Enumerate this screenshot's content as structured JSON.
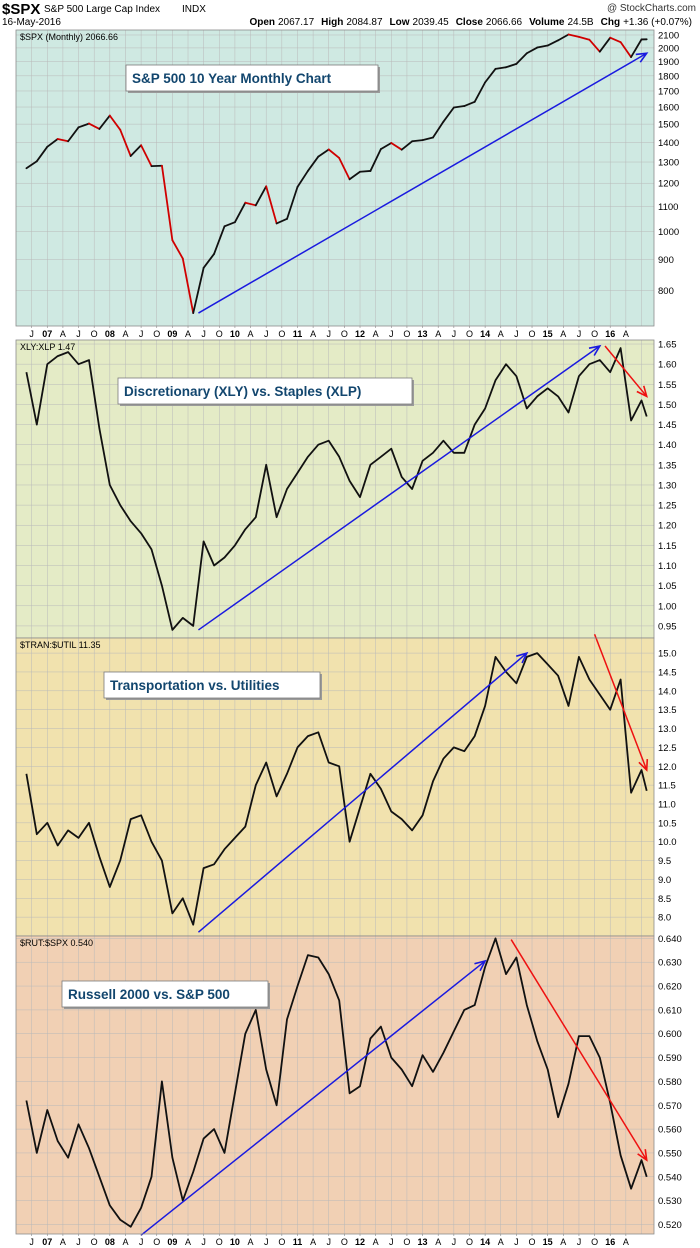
{
  "header": {
    "symbol": "$SPX",
    "name": "S&P 500 Large Cap Index",
    "exchange": "INDX",
    "watermark": "@ StockCharts.com",
    "date": "16-May-2016",
    "open_label": "Open",
    "open": "2067.17",
    "high_label": "High",
    "high": "2084.87",
    "low_label": "Low",
    "low": "2039.45",
    "close_label": "Close",
    "close": "2066.66",
    "volume_label": "Volume",
    "volume": "24.5B",
    "chg_label": "Chg",
    "chg": "+1.36 (+0.07%)"
  },
  "colors": {
    "up_line": "#111111",
    "down_line": "#d00000",
    "trend_up": "#1a1adf",
    "trend_down": "#ee1111",
    "panel_bg": [
      "#cfe9e2",
      "#e4ebc6",
      "#f1e2ae",
      "#f1d0b4"
    ]
  },
  "x_axis": {
    "tick_labels": [
      "J",
      "07",
      "A",
      "J",
      "O",
      "08",
      "A",
      "J",
      "O",
      "09",
      "A",
      "J",
      "O",
      "10",
      "A",
      "J",
      "O",
      "11",
      "A",
      "J",
      "O",
      "12",
      "A",
      "J",
      "O",
      "13",
      "A",
      "J",
      "O",
      "14",
      "A",
      "J",
      "O",
      "15",
      "A",
      "J",
      "O",
      "16",
      "A"
    ],
    "bold_labels": [
      "07",
      "08",
      "09",
      "10",
      "11",
      "12",
      "13",
      "14",
      "15",
      "16"
    ]
  },
  "chart_data": [
    {
      "type": "line",
      "legend": "$SPX (Monthly) 2066.66",
      "annotation": "S&P 500 10 Year Monthly Chart",
      "y_scale": "log",
      "ylim": [
        700,
        2140
      ],
      "yticks": [
        800,
        900,
        1000,
        1100,
        1200,
        1300,
        1400,
        1500,
        1600,
        1700,
        1800,
        1900,
        2000,
        2100
      ],
      "x": [
        "2006-06",
        "2006-08",
        "2006-10",
        "2006-12",
        "2007-02",
        "2007-04",
        "2007-06",
        "2007-08",
        "2007-10",
        "2007-12",
        "2008-02",
        "2008-04",
        "2008-06",
        "2008-08",
        "2008-10",
        "2008-12",
        "2009-02",
        "2009-04",
        "2009-06",
        "2009-08",
        "2009-10",
        "2009-12",
        "2010-02",
        "2010-04",
        "2010-06",
        "2010-08",
        "2010-10",
        "2010-12",
        "2011-02",
        "2011-04",
        "2011-06",
        "2011-08",
        "2011-10",
        "2011-12",
        "2012-02",
        "2012-04",
        "2012-06",
        "2012-08",
        "2012-10",
        "2012-12",
        "2013-02",
        "2013-04",
        "2013-06",
        "2013-08",
        "2013-10",
        "2013-12",
        "2014-02",
        "2014-04",
        "2014-06",
        "2014-08",
        "2014-10",
        "2014-12",
        "2015-02",
        "2015-04",
        "2015-06",
        "2015-08",
        "2015-10",
        "2015-12",
        "2016-02",
        "2016-04",
        "2016-05"
      ],
      "values": [
        1270,
        1304,
        1377,
        1418,
        1406,
        1482,
        1503,
        1473,
        1549,
        1468,
        1330,
        1385,
        1280,
        1282,
        968,
        903,
        735,
        872,
        919,
        1020,
        1036,
        1115,
        1104,
        1186,
        1031,
        1049,
        1183,
        1257,
        1327,
        1363,
        1320,
        1218,
        1253,
        1257,
        1365,
        1397,
        1362,
        1406,
        1412,
        1426,
        1514,
        1597,
        1606,
        1632,
        1756,
        1848,
        1859,
        1883,
        1960,
        2003,
        2018,
        2058,
        2104,
        2085,
        2063,
        1972,
        2079,
        2044,
        1932,
        2065,
        2066
      ],
      "trendlines": [
        {
          "from": [
            "2009-03",
            735
          ],
          "to": [
            "2016-05",
            1960
          ],
          "color": "blue"
        }
      ]
    },
    {
      "type": "line",
      "legend": "XLY:XLP 1.47",
      "annotation": "Discretionary (XLY) vs. Staples (XLP)",
      "ylim": [
        0.92,
        1.66
      ],
      "yticks": [
        0.95,
        1.0,
        1.05,
        1.1,
        1.15,
        1.2,
        1.25,
        1.3,
        1.35,
        1.4,
        1.45,
        1.5,
        1.55,
        1.6,
        1.65
      ],
      "x": [
        "2006-06",
        "2006-08",
        "2006-10",
        "2006-12",
        "2007-02",
        "2007-04",
        "2007-06",
        "2007-08",
        "2007-10",
        "2007-12",
        "2008-02",
        "2008-04",
        "2008-06",
        "2008-08",
        "2008-10",
        "2008-12",
        "2009-02",
        "2009-04",
        "2009-06",
        "2009-08",
        "2009-10",
        "2009-12",
        "2010-02",
        "2010-04",
        "2010-06",
        "2010-08",
        "2010-10",
        "2010-12",
        "2011-02",
        "2011-04",
        "2011-06",
        "2011-08",
        "2011-10",
        "2011-12",
        "2012-02",
        "2012-04",
        "2012-06",
        "2012-08",
        "2012-10",
        "2012-12",
        "2013-02",
        "2013-04",
        "2013-06",
        "2013-08",
        "2013-10",
        "2013-12",
        "2014-02",
        "2014-04",
        "2014-06",
        "2014-08",
        "2014-10",
        "2014-12",
        "2015-02",
        "2015-04",
        "2015-06",
        "2015-08",
        "2015-10",
        "2015-12",
        "2016-02",
        "2016-04",
        "2016-05"
      ],
      "values": [
        1.58,
        1.45,
        1.6,
        1.62,
        1.63,
        1.6,
        1.61,
        1.44,
        1.3,
        1.25,
        1.21,
        1.18,
        1.14,
        1.05,
        0.94,
        0.97,
        0.95,
        1.16,
        1.1,
        1.12,
        1.15,
        1.19,
        1.22,
        1.35,
        1.22,
        1.29,
        1.33,
        1.37,
        1.4,
        1.41,
        1.37,
        1.31,
        1.27,
        1.35,
        1.37,
        1.39,
        1.32,
        1.29,
        1.36,
        1.38,
        1.41,
        1.38,
        1.38,
        1.45,
        1.49,
        1.56,
        1.6,
        1.57,
        1.49,
        1.52,
        1.54,
        1.52,
        1.48,
        1.57,
        1.6,
        1.61,
        1.58,
        1.64,
        1.46,
        1.51,
        1.47
      ],
      "trendlines": [
        {
          "from": [
            "2009-03",
            0.94
          ],
          "to": [
            "2015-08",
            1.645
          ],
          "color": "blue"
        },
        {
          "from": [
            "2015-09",
            1.645
          ],
          "to": [
            "2016-05",
            1.52
          ],
          "color": "red"
        }
      ]
    },
    {
      "type": "line",
      "legend": "$TRAN:$UTIL 11.35",
      "annotation": "Transportation vs. Utilities",
      "ylim": [
        7.5,
        15.4
      ],
      "yticks": [
        8.0,
        8.5,
        9.0,
        9.5,
        10.0,
        10.5,
        11.0,
        11.5,
        12.0,
        12.5,
        13.0,
        13.5,
        14.0,
        14.5,
        15.0
      ],
      "x": [
        "2006-06",
        "2006-08",
        "2006-10",
        "2006-12",
        "2007-02",
        "2007-04",
        "2007-06",
        "2007-08",
        "2007-10",
        "2007-12",
        "2008-02",
        "2008-04",
        "2008-06",
        "2008-08",
        "2008-10",
        "2008-12",
        "2009-02",
        "2009-04",
        "2009-06",
        "2009-08",
        "2009-10",
        "2009-12",
        "2010-02",
        "2010-04",
        "2010-06",
        "2010-08",
        "2010-10",
        "2010-12",
        "2011-02",
        "2011-04",
        "2011-06",
        "2011-08",
        "2011-10",
        "2011-12",
        "2012-02",
        "2012-04",
        "2012-06",
        "2012-08",
        "2012-10",
        "2012-12",
        "2013-02",
        "2013-04",
        "2013-06",
        "2013-08",
        "2013-10",
        "2013-12",
        "2014-02",
        "2014-04",
        "2014-06",
        "2014-08",
        "2014-10",
        "2014-12",
        "2015-02",
        "2015-04",
        "2015-06",
        "2015-08",
        "2015-10",
        "2015-12",
        "2016-02",
        "2016-04",
        "2016-05"
      ],
      "values": [
        11.8,
        10.2,
        10.5,
        9.9,
        10.3,
        10.1,
        10.5,
        9.6,
        8.8,
        9.5,
        10.6,
        10.7,
        10.0,
        9.5,
        8.1,
        8.5,
        7.8,
        9.3,
        9.4,
        9.8,
        10.1,
        10.4,
        11.5,
        12.1,
        11.2,
        11.8,
        12.5,
        12.8,
        12.9,
        12.1,
        12.0,
        10.0,
        10.9,
        11.8,
        11.4,
        10.8,
        10.6,
        10.3,
        10.7,
        11.6,
        12.2,
        12.5,
        12.4,
        12.8,
        13.6,
        14.9,
        14.5,
        14.2,
        14.9,
        15.0,
        14.7,
        14.4,
        13.6,
        14.9,
        14.3,
        13.9,
        13.5,
        14.3,
        11.3,
        11.9,
        11.35
      ],
      "trendlines": [
        {
          "from": [
            "2009-03",
            7.6
          ],
          "to": [
            "2014-06",
            15.0
          ],
          "color": "blue"
        },
        {
          "from": [
            "2015-07",
            15.5
          ],
          "to": [
            "2016-05",
            11.9
          ],
          "color": "red"
        }
      ]
    },
    {
      "type": "line",
      "legend": "$RUT:$SPX 0.540",
      "annotation": "Russell 2000 vs. S&P 500",
      "ylim": [
        0.516,
        0.641
      ],
      "yticks": [
        0.52,
        0.53,
        0.54,
        0.55,
        0.56,
        0.57,
        0.58,
        0.59,
        0.6,
        0.61,
        0.62,
        0.63,
        0.64
      ],
      "x": [
        "2006-06",
        "2006-08",
        "2006-10",
        "2006-12",
        "2007-02",
        "2007-04",
        "2007-06",
        "2007-08",
        "2007-10",
        "2007-12",
        "2008-02",
        "2008-04",
        "2008-06",
        "2008-08",
        "2008-10",
        "2008-12",
        "2009-02",
        "2009-04",
        "2009-06",
        "2009-08",
        "2009-10",
        "2009-12",
        "2010-02",
        "2010-04",
        "2010-06",
        "2010-08",
        "2010-10",
        "2010-12",
        "2011-02",
        "2011-04",
        "2011-06",
        "2011-08",
        "2011-10",
        "2011-12",
        "2012-02",
        "2012-04",
        "2012-06",
        "2012-08",
        "2012-10",
        "2012-12",
        "2013-02",
        "2013-04",
        "2013-06",
        "2013-08",
        "2013-10",
        "2013-12",
        "2014-02",
        "2014-04",
        "2014-06",
        "2014-08",
        "2014-10",
        "2014-12",
        "2015-02",
        "2015-04",
        "2015-06",
        "2015-08",
        "2015-10",
        "2015-12",
        "2016-02",
        "2016-04",
        "2016-05"
      ],
      "values": [
        0.572,
        0.55,
        0.568,
        0.555,
        0.548,
        0.562,
        0.552,
        0.54,
        0.528,
        0.522,
        0.519,
        0.527,
        0.54,
        0.58,
        0.548,
        0.53,
        0.542,
        0.556,
        0.56,
        0.55,
        0.575,
        0.6,
        0.61,
        0.585,
        0.57,
        0.606,
        0.62,
        0.633,
        0.632,
        0.625,
        0.614,
        0.575,
        0.578,
        0.598,
        0.603,
        0.59,
        0.585,
        0.578,
        0.591,
        0.584,
        0.592,
        0.601,
        0.61,
        0.612,
        0.628,
        0.64,
        0.625,
        0.632,
        0.612,
        0.597,
        0.585,
        0.565,
        0.579,
        0.599,
        0.599,
        0.59,
        0.571,
        0.549,
        0.535,
        0.547,
        0.54
      ],
      "trendlines": [
        {
          "from": [
            "2008-04",
            0.5155
          ],
          "to": [
            "2013-10",
            0.6305
          ],
          "color": "blue"
        },
        {
          "from": [
            "2014-03",
            0.6395
          ],
          "to": [
            "2016-05",
            0.547
          ],
          "color": "red"
        }
      ]
    }
  ]
}
